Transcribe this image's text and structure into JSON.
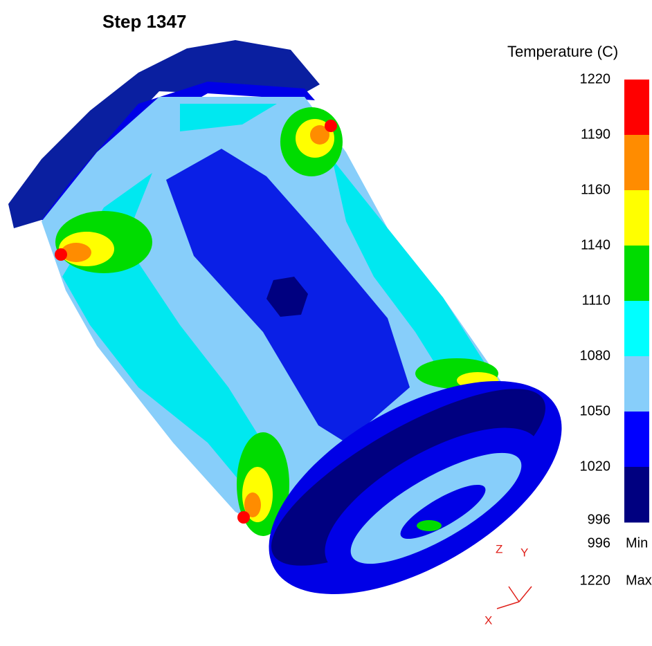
{
  "header": {
    "title": "Step 1347"
  },
  "legend": {
    "title": "Temperature (C)",
    "ticks": [
      "1220",
      "1190",
      "1160",
      "1140",
      "1110",
      "1080",
      "1050",
      "1020",
      "996"
    ],
    "colors": [
      "#ff0000",
      "#ff8c00",
      "#ffff00",
      "#00dc00",
      "#00ffff",
      "#87cefa",
      "#0000ff",
      "#000080"
    ],
    "min": {
      "value": "996",
      "label": "Min"
    },
    "max": {
      "value": "1220",
      "label": "Max"
    }
  },
  "triad": {
    "z": "Z",
    "y": "Y",
    "x": "X"
  }
}
